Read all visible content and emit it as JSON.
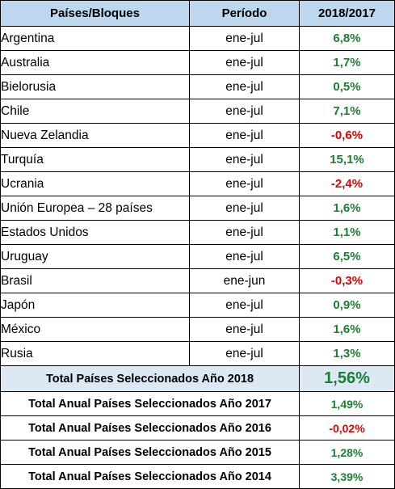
{
  "headers": {
    "country": "Países/Bloques",
    "period": "Período",
    "change": "2018/2017"
  },
  "rows": [
    {
      "country": "Argentina",
      "period": "ene-jul",
      "value": "6,8%"
    },
    {
      "country": "Australia",
      "period": "ene-jul",
      "value": "1,7%"
    },
    {
      "country": "Bielorusia",
      "period": "ene-jul",
      "value": "0,5%"
    },
    {
      "country": "Chile",
      "period": "ene-jul",
      "value": "7,1%"
    },
    {
      "country": "Nueva Zelandia",
      "period": "ene-jul",
      "value": "-0,6%"
    },
    {
      "country": "Turquía",
      "period": "ene-jul",
      "value": "15,1%"
    },
    {
      "country": "Ucrania",
      "period": "ene-jul",
      "value": "-2,4%"
    },
    {
      "country": "Unión Europea – 28 países",
      "period": "ene-jul",
      "value": "1,6%"
    },
    {
      "country": "Estados Unidos",
      "period": "ene-jul",
      "value": "1,1%"
    },
    {
      "country": "Uruguay",
      "period": "ene-jul",
      "value": "6,5%"
    },
    {
      "country": "Brasil",
      "period": "ene-jun",
      "value": "-0,3%"
    },
    {
      "country": "Japón",
      "period": "ene-jul",
      "value": "0,9%"
    },
    {
      "country": "México",
      "period": "ene-jul",
      "value": "1,6%"
    },
    {
      "country": "Rusia",
      "period": "ene-jul",
      "value": "1,3%"
    }
  ],
  "total_selected": {
    "label": "Total Países Seleccionados Año 2018",
    "value": "1,56%"
  },
  "annual_totals": [
    {
      "label": "Total Anual Países Seleccionados Año 2017",
      "value": "1,49%"
    },
    {
      "label": "Total Anual Países Seleccionados Año 2016",
      "value": "-0,02%"
    },
    {
      "label": "Total Anual Países Seleccionados Año 2015",
      "value": "1,28%"
    },
    {
      "label": "Total Anual Países Seleccionados Año 2014",
      "value": "3,39%"
    }
  ],
  "colors": {
    "header_bg": "#bdd7ee",
    "total_bg": "#dce9f5",
    "positive": "#1e7d32",
    "negative": "#e00000"
  }
}
